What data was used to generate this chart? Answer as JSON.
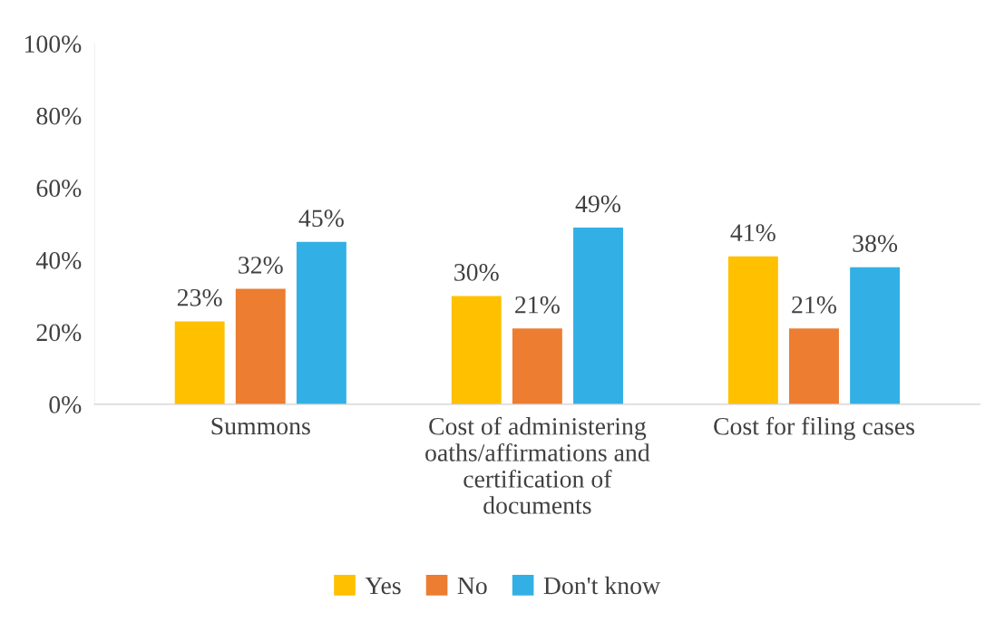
{
  "chart_data": {
    "type": "bar",
    "categories": [
      "Summons",
      "Cost of administering\noaths/affirmations and\ncertification of\ndocuments",
      "Cost for filing cases"
    ],
    "series": [
      {
        "name": "Yes",
        "color": "#ffc000",
        "values": [
          23,
          30,
          41
        ]
      },
      {
        "name": "No",
        "color": "#ed7d31",
        "values": [
          32,
          21,
          21
        ]
      },
      {
        "name": "Don't know",
        "color": "#32b0e5",
        "values": [
          45,
          49,
          38
        ]
      }
    ],
    "ylim": [
      0,
      100
    ],
    "yticks": [
      {
        "value": 0,
        "label": "0%"
      },
      {
        "value": 20,
        "label": "20%"
      },
      {
        "value": 40,
        "label": "40%"
      },
      {
        "value": 60,
        "label": "60%"
      },
      {
        "value": 80,
        "label": "80%"
      },
      {
        "value": 100,
        "label": "100%"
      }
    ],
    "value_labels": [
      [
        "23%",
        "30%",
        "41%"
      ],
      [
        "32%",
        "21%",
        "21%"
      ],
      [
        "45%",
        "49%",
        "38%"
      ]
    ],
    "grid": false,
    "legend": "bottom"
  }
}
